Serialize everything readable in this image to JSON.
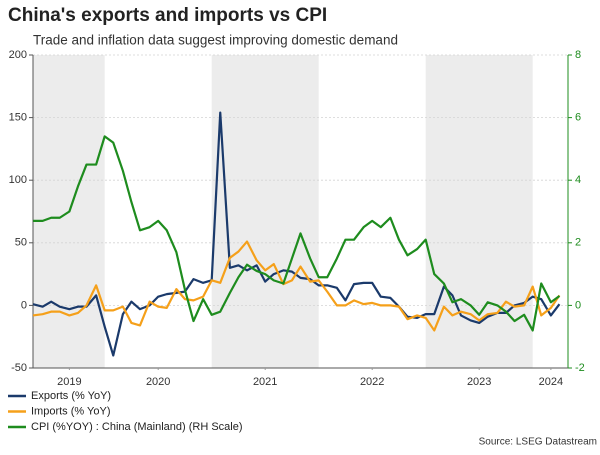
{
  "chart_data": {
    "type": "line",
    "title": "China's exports and imports vs CPI",
    "subtitle": "Trade and inflation data suggest improving domestic demand",
    "source": "Source: LSEG Datastream",
    "x": [
      2019.33,
      2019.42,
      2019.5,
      2019.58,
      2019.67,
      2019.75,
      2019.83,
      2019.92,
      2020.0,
      2020.08,
      2020.17,
      2020.25,
      2020.33,
      2020.42,
      2020.5,
      2020.58,
      2020.67,
      2020.75,
      2020.83,
      2020.92,
      2021.0,
      2021.08,
      2021.17,
      2021.25,
      2021.33,
      2021.42,
      2021.5,
      2021.58,
      2021.67,
      2021.75,
      2021.83,
      2021.92,
      2022.0,
      2022.08,
      2022.17,
      2022.25,
      2022.33,
      2022.42,
      2022.5,
      2022.58,
      2022.67,
      2022.75,
      2022.83,
      2022.92,
      2023.0,
      2023.08,
      2023.17,
      2023.25,
      2023.33,
      2023.42,
      2023.5,
      2023.58,
      2023.67,
      2023.75,
      2023.83,
      2023.92,
      2024.0,
      2024.08,
      2024.17,
      2024.25
    ],
    "xlim": [
      2019.33,
      2024.33
    ],
    "xticks": [
      {
        "value": 2019.67,
        "label": "2019"
      },
      {
        "value": 2020.5,
        "label": "2020"
      },
      {
        "value": 2021.5,
        "label": "2021"
      },
      {
        "value": 2022.5,
        "label": "2022"
      },
      {
        "value": 2023.5,
        "label": "2023"
      },
      {
        "value": 2024.17,
        "label": "2024"
      }
    ],
    "shaded_spans": [
      [
        2019,
        2020
      ],
      [
        2021,
        2022
      ],
      [
        2023,
        2024
      ]
    ],
    "ylim": [
      -50,
      200
    ],
    "yticks": [
      -50,
      0,
      50,
      100,
      150,
      200
    ],
    "y2lim": [
      -2,
      8
    ],
    "y2ticks": [
      -2,
      0,
      2,
      4,
      6,
      8
    ],
    "grid": true,
    "series": [
      {
        "name": "Exports (% YoY)",
        "color": "#1b3a6b",
        "axis": "y",
        "values": [
          1,
          -1,
          3,
          -1,
          -3,
          -1,
          -1,
          8,
          -17,
          -40,
          -7,
          3,
          -3,
          0,
          7,
          9,
          10,
          11,
          21,
          18,
          20,
          154,
          30,
          32,
          28,
          32,
          19,
          25,
          28,
          27,
          22,
          21,
          16,
          16,
          14,
          4,
          17,
          18,
          18,
          7,
          6,
          -1,
          -9,
          -10,
          -7,
          -7,
          15,
          8,
          -8,
          -12,
          -14,
          -9,
          -6,
          -6,
          0,
          2,
          7,
          5,
          -8,
          1
        ]
      },
      {
        "name": "Imports (% YoY)",
        "color": "#f5a01a",
        "axis": "y",
        "values": [
          -8,
          -7,
          -5,
          -5,
          -8,
          -6,
          0,
          16,
          -4,
          -4,
          -1,
          -14,
          -16,
          3,
          -1,
          -2,
          13,
          5,
          4,
          7,
          20,
          18,
          38,
          43,
          51,
          36,
          28,
          33,
          17,
          20,
          31,
          19,
          20,
          11,
          0,
          0,
          4,
          1,
          2,
          0,
          0,
          -1,
          -11,
          -8,
          -10,
          -20,
          -1,
          -8,
          -5,
          -7,
          -12,
          -7,
          -6,
          3,
          -1,
          0,
          15,
          -8,
          -2,
          8
        ]
      },
      {
        "name": "CPI (%YOY) : China (Mainland) (RH Scale)",
        "color": "#1e8c1e",
        "axis": "y2",
        "values": [
          2.7,
          2.7,
          2.8,
          2.8,
          3.0,
          3.8,
          4.5,
          4.5,
          5.4,
          5.2,
          4.3,
          3.3,
          2.4,
          2.5,
          2.7,
          2.4,
          1.7,
          0.5,
          -0.5,
          0.2,
          -0.3,
          -0.2,
          0.4,
          0.9,
          1.3,
          1.1,
          1.0,
          0.8,
          0.7,
          1.5,
          2.3,
          1.5,
          0.9,
          0.9,
          1.5,
          2.1,
          2.1,
          2.5,
          2.7,
          2.5,
          2.8,
          2.1,
          1.6,
          1.8,
          2.1,
          1.0,
          0.7,
          0.1,
          0.2,
          0.0,
          -0.3,
          0.1,
          0.0,
          -0.2,
          -0.5,
          -0.3,
          -0.8,
          0.7,
          0.1,
          0.3
        ]
      }
    ]
  }
}
